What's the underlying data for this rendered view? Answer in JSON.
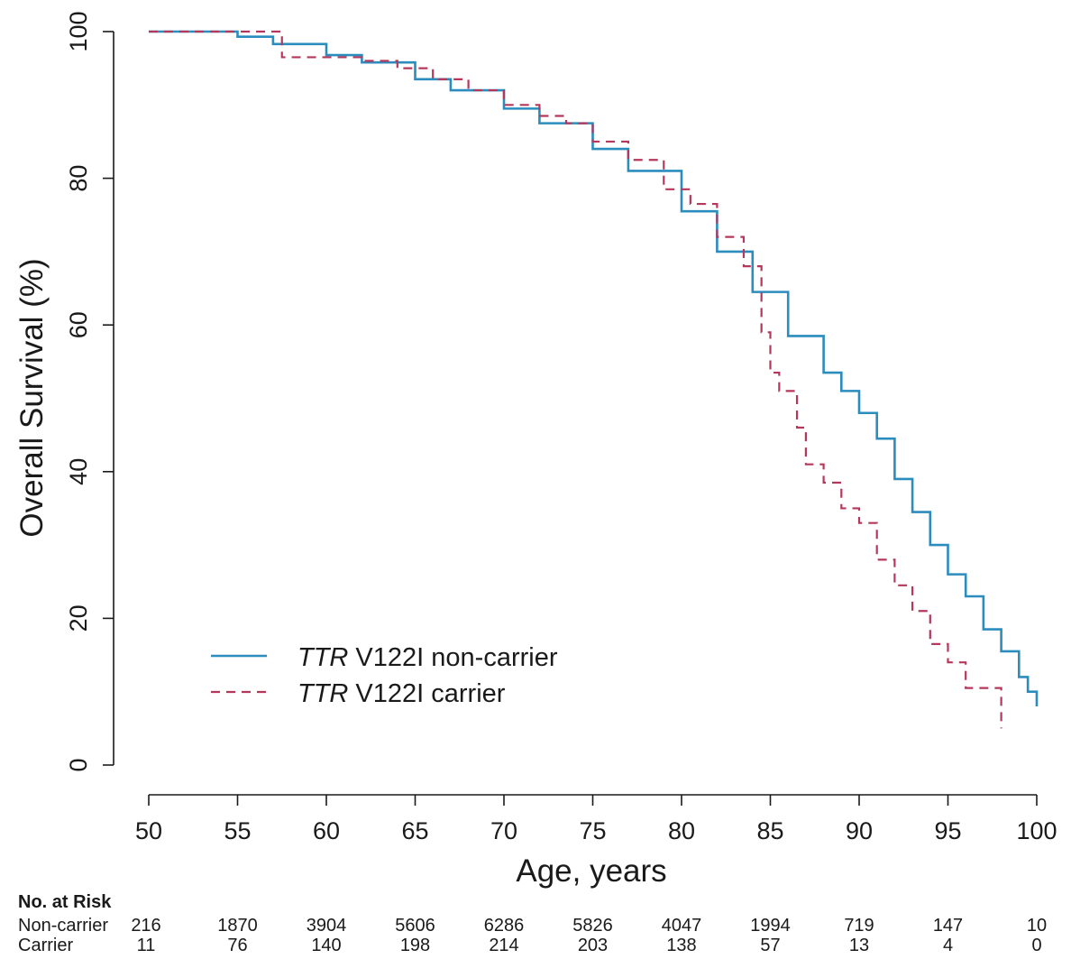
{
  "chart_data": {
    "type": "line",
    "title": "",
    "xlabel": "Age, years",
    "ylabel": "Overall Survival (%)",
    "xlim": [
      50,
      100
    ],
    "ylim": [
      0,
      100
    ],
    "x_ticks": [
      "50",
      "55",
      "60",
      "65",
      "70",
      "75",
      "80",
      "85",
      "90",
      "95",
      "100"
    ],
    "y_ticks": [
      "0",
      "20",
      "40",
      "60",
      "80",
      "100"
    ],
    "grid": false,
    "legend_position": "bottom-left",
    "series": [
      {
        "name_italic": "TTR",
        "name_rest": " V122I non-carrier",
        "color": "#2b8cbe",
        "style": "solid",
        "x": [
          50,
          53,
          55,
          57,
          60,
          62,
          65,
          67,
          70,
          72,
          75,
          77,
          80,
          82,
          84,
          86,
          88,
          89,
          90,
          91,
          92,
          93,
          94,
          95,
          96,
          97,
          98,
          99,
          99.5,
          100
        ],
        "y": [
          100,
          100,
          99.3,
          98.3,
          96.8,
          95.8,
          93.5,
          92,
          89.5,
          87.5,
          84,
          81,
          75.5,
          70,
          64.5,
          58.5,
          53.5,
          51,
          48,
          44.5,
          39,
          34.5,
          30,
          26,
          23,
          18.5,
          15.5,
          12,
          10,
          8
        ]
      },
      {
        "name_italic": "TTR",
        "name_rest": " V122I carrier",
        "color": "#b5385c",
        "style": "dashed",
        "x": [
          50,
          53,
          56.2,
          57.5,
          60,
          62,
          64,
          66,
          68,
          70,
          72,
          73.5,
          75,
          77,
          79,
          80.5,
          82,
          83.5,
          84.5,
          85,
          85.5,
          86.5,
          87,
          88,
          89,
          90,
          91,
          92,
          93,
          94,
          95,
          96,
          97,
          97.8,
          98
        ],
        "y": [
          100,
          100,
          100,
          96.5,
          96.5,
          96,
          95,
          93.5,
          92,
          90,
          88.5,
          87.5,
          85,
          82.5,
          78.5,
          76.5,
          72,
          68,
          59,
          53.5,
          51,
          46,
          41,
          38.5,
          35,
          33,
          28,
          24.5,
          21,
          16.5,
          14,
          10.5,
          10.5,
          10.5,
          5
        ]
      }
    ],
    "risk_table": {
      "header": "No. at Risk",
      "rows": [
        {
          "label": "Non-carrier",
          "values": [
            "216",
            "1870",
            "3904",
            "5606",
            "6286",
            "5826",
            "4047",
            "1994",
            "719",
            "147",
            "10"
          ]
        },
        {
          "label": "Carrier",
          "values": [
            "11",
            "76",
            "140",
            "198",
            "214",
            "203",
            "138",
            "57",
            "13",
            "4",
            "0"
          ]
        }
      ]
    }
  }
}
